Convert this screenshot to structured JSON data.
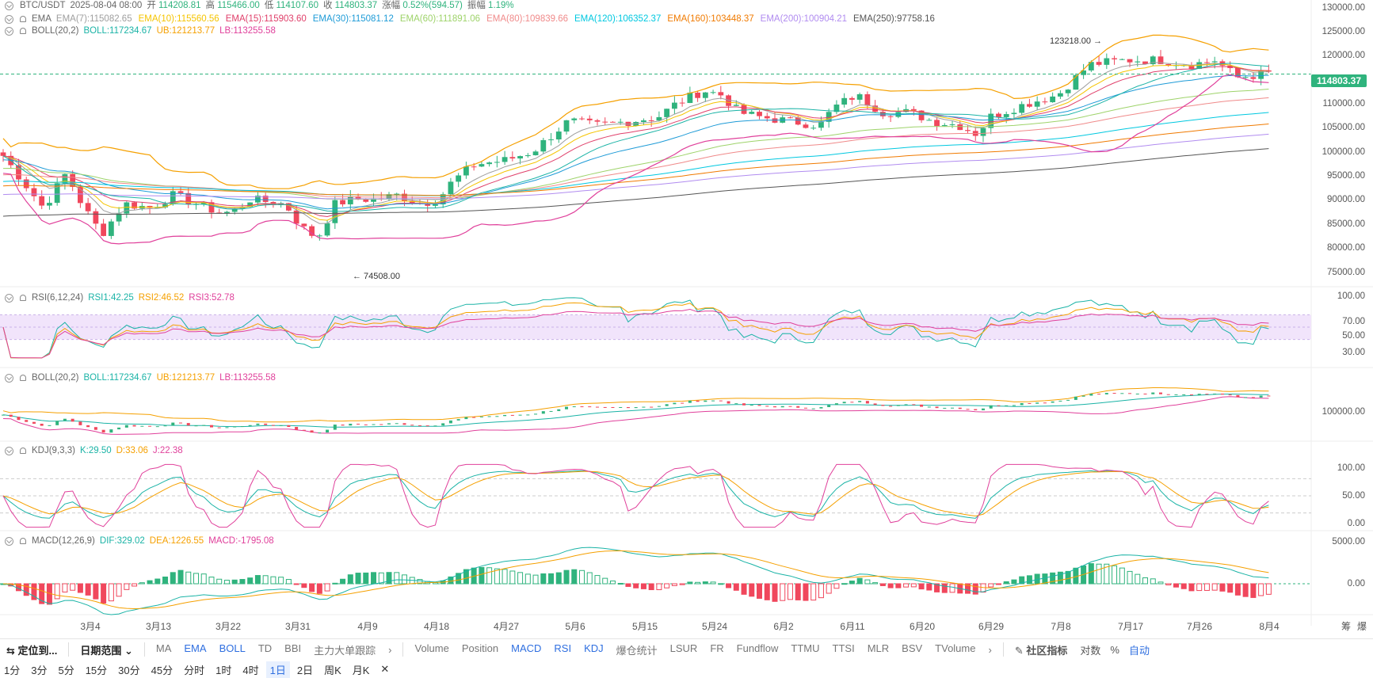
{
  "header": {
    "pair": "BTC/USDT",
    "datetime": "2025-08-04 08:00",
    "open_label": "开",
    "open": "114208.81",
    "high_label": "高",
    "high": "115466.00",
    "low_label": "低",
    "low": "114107.60",
    "close_label": "收",
    "close": "114803.37",
    "change_label": "涨幅",
    "change": "0.52%(594.57)",
    "amp_label": "振幅",
    "amp": "1.19%"
  },
  "ema_legend": {
    "name": "EMA",
    "items": [
      {
        "label": "EMA(7):115082.65",
        "color": "#9e9e9e"
      },
      {
        "label": "EMA(10):115560.56",
        "color": "#f5c400"
      },
      {
        "label": "EMA(15):115903.60",
        "color": "#e0406b"
      },
      {
        "label": "EMA(30):115081.12",
        "color": "#1e9bd7"
      },
      {
        "label": "EMA(60):111891.06",
        "color": "#9ed36a"
      },
      {
        "label": "EMA(80):109839.66",
        "color": "#f08a8a"
      },
      {
        "label": "EMA(120):106352.37",
        "color": "#00c8e0"
      },
      {
        "label": "EMA(160):103448.37",
        "color": "#f07a00"
      },
      {
        "label": "EMA(200):100904.21",
        "color": "#b18cf0"
      },
      {
        "label": "EMA(250):97758.16",
        "color": "#555555"
      }
    ]
  },
  "boll_legend": {
    "name": "BOLL(20,2)",
    "boll": "BOLL:117234.67",
    "ub": "UB:121213.77",
    "lb": "LB:113255.58"
  },
  "rsi_legend": {
    "name": "RSI(6,12,24)",
    "rsi1": "RSI1:42.25",
    "rsi2": "RSI2:46.52",
    "rsi3": "RSI3:52.78"
  },
  "boll2_legend": {
    "name": "BOLL(20,2)",
    "boll": "BOLL:117234.67",
    "ub": "UB:121213.77",
    "lb": "LB:113255.58"
  },
  "kdj_legend": {
    "name": "KDJ(9,3,3)",
    "k": "K:29.50",
    "d": "D:33.06",
    "j": "J:22.38"
  },
  "macd_legend": {
    "name": "MACD(12,26,9)",
    "dif": "DIF:329.02",
    "dea": "DEA:1226.55",
    "macd": "MACD:-1795.08"
  },
  "price_axis": [
    "130000.00",
    "125000.00",
    "120000.00",
    "115000.00",
    "110000.00",
    "105000.00",
    "100000.00",
    "95000.00",
    "90000.00",
    "85000.00",
    "80000.00",
    "75000.00"
  ],
  "rsi_axis": [
    "100.00",
    "70.00",
    "50.00",
    "30.00"
  ],
  "boll2_axis": [
    "100000.00"
  ],
  "kdj_axis": [
    "100.00",
    "50.00",
    "0.00"
  ],
  "macd_axis": [
    "5000.00",
    "0.00"
  ],
  "current_price": "114803.37",
  "annotations": {
    "high": "123218.00",
    "low": "74508.00"
  },
  "x_axis": [
    "3月4",
    "3月13",
    "3月22",
    "3月31",
    "4月9",
    "4月18",
    "4月27",
    "5月6",
    "5月15",
    "5月24",
    "6月2",
    "6月11",
    "6月20",
    "6月29",
    "7月8",
    "7月17",
    "7月26",
    "8月4"
  ],
  "corner_labels": {
    "chips": "筹",
    "liq": "爆"
  },
  "toolbar": {
    "locate": "定位到...",
    "date_range": "日期范围",
    "main_indicators": [
      "MA",
      "EMA",
      "BOLL",
      "TD",
      "BBI",
      "主力大单跟踪"
    ],
    "sub_indicators": [
      "Volume",
      "Position",
      "MACD",
      "RSI",
      "KDJ",
      "爆仓统计",
      "LSUR",
      "FR",
      "Fundflow",
      "TTMU",
      "TTSI",
      "MLR",
      "BSV",
      "TVolume"
    ],
    "community": "社区指标",
    "log": "对数",
    "pct": "%",
    "auto": "自动"
  },
  "timeframes": [
    "1分",
    "3分",
    "5分",
    "15分",
    "30分",
    "45分",
    "分时",
    "1时",
    "4时",
    "1日",
    "2日",
    "周K",
    "月K"
  ],
  "active_timeframe": "1日",
  "colors": {
    "up": "#2fb37d",
    "down": "#f0475c"
  }
}
